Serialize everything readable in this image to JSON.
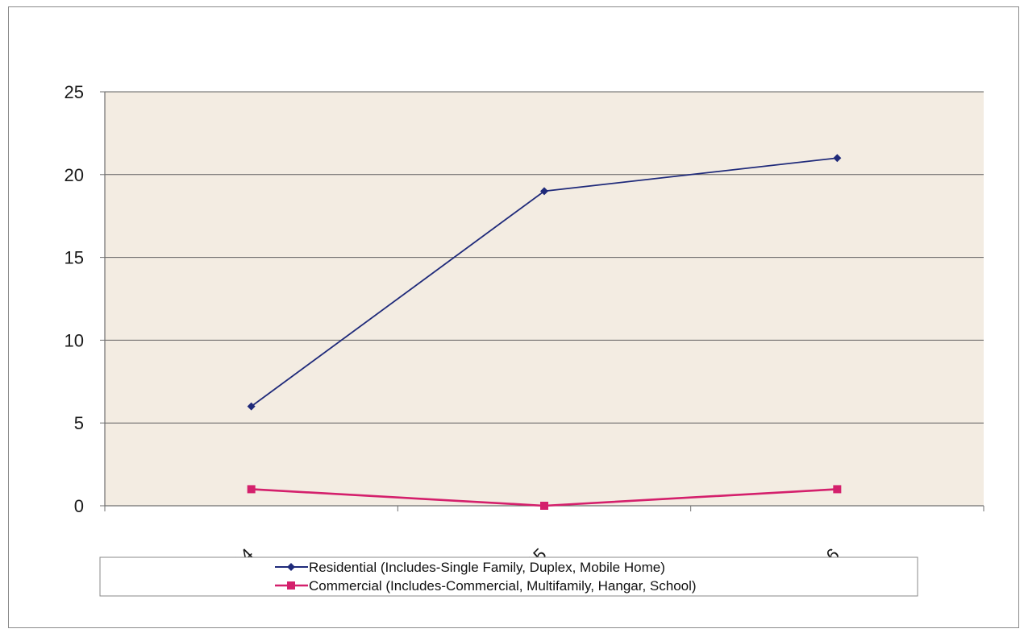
{
  "chart_data": {
    "type": "line",
    "title": "",
    "xlabel": "",
    "ylabel": "",
    "categories": [
      "2014",
      "2015",
      "2016"
    ],
    "ylim": [
      0,
      25
    ],
    "yticks": [
      "0",
      "5",
      "10",
      "15",
      "20",
      "25"
    ],
    "grid": true,
    "legend_position": "bottom",
    "plot_background": "#f3ece2",
    "series": [
      {
        "name": "Residential (Includes-Single Family, Duplex, Mobile Home)",
        "values": [
          6,
          19,
          21
        ],
        "color": "#1f2a7a",
        "marker": "diamond"
      },
      {
        "name": "Commercial (Includes-Commercial, Multifamily, Hangar, School)",
        "values": [
          1,
          0,
          1
        ],
        "color": "#d4206c",
        "marker": "square"
      }
    ]
  }
}
